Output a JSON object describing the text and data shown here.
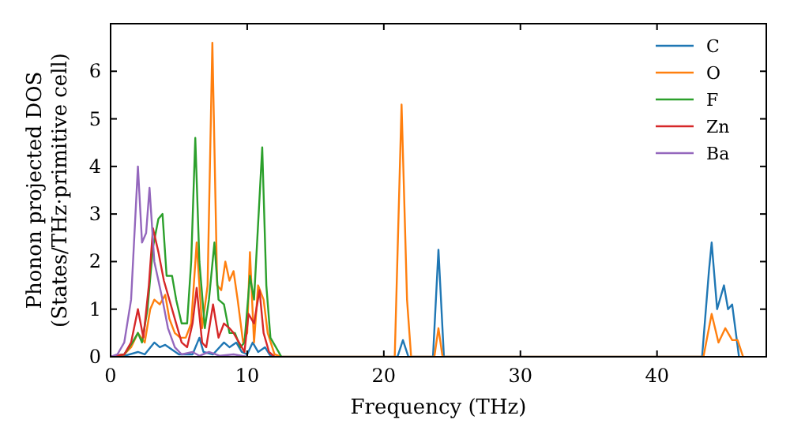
{
  "chart_data": {
    "type": "line",
    "xlabel": "Frequency (THz)",
    "ylabel": "Phonon projected DOS\n(States/THz·primitive cell)",
    "xlim": [
      0,
      48
    ],
    "ylim": [
      0,
      7
    ],
    "xticks": [
      0,
      10,
      20,
      30,
      40
    ],
    "yticks": [
      0,
      1,
      2,
      3,
      4,
      5,
      6
    ],
    "legend": "top right",
    "grid": false,
    "marker": "none",
    "line_style": "solid",
    "series": [
      {
        "name": "C",
        "color": "#1f77b4",
        "x": [
          0,
          1,
          2,
          2.5,
          3.2,
          3.6,
          4,
          4.5,
          5,
          6,
          6.5,
          6.8,
          7.5,
          8.3,
          8.7,
          9.2,
          9.6,
          10,
          10.4,
          10.8,
          11.3,
          11.7,
          12,
          21,
          21.4,
          21.8,
          23.6,
          24,
          24.4,
          43.3,
          43.8,
          44,
          44.4,
          44.9,
          45.2,
          45.5,
          46
        ],
        "values": [
          0,
          0.02,
          0.1,
          0.05,
          0.3,
          0.2,
          0.25,
          0.15,
          0.05,
          0.05,
          0.4,
          0.1,
          0.05,
          0.3,
          0.2,
          0.3,
          0.1,
          0.05,
          0.3,
          0.1,
          0.2,
          0.02,
          0,
          0,
          0.35,
          0,
          0,
          2.25,
          0,
          0,
          1.8,
          2.4,
          1,
          1.5,
          1,
          1.1,
          0
        ]
      },
      {
        "name": "O",
        "color": "#ff7f0e",
        "x": [
          0,
          1,
          1.5,
          2,
          2.5,
          2.9,
          3.2,
          3.6,
          4,
          4.3,
          4.7,
          5.1,
          5.5,
          5.9,
          6.3,
          6.7,
          7.1,
          7.45,
          7.8,
          8.1,
          8.4,
          8.7,
          9,
          9.3,
          9.7,
          10,
          10.2,
          10.5,
          10.8,
          11.2,
          11.5,
          12,
          12.5,
          20.8,
          21.3,
          21.7,
          22,
          23.7,
          24,
          24.3,
          43.4,
          44,
          44.5,
          45,
          45.5,
          45.9,
          46.3
        ],
        "values": [
          0,
          0.05,
          0.2,
          0.5,
          0.3,
          1,
          1.2,
          1.1,
          1.3,
          0.8,
          0.5,
          0.4,
          0.4,
          0.7,
          2.4,
          0.6,
          1.5,
          6.6,
          1.5,
          1.4,
          2,
          1.6,
          1.8,
          1.2,
          0.3,
          0.5,
          2.2,
          0.3,
          1.5,
          1.2,
          0.5,
          0.05,
          0,
          0,
          5.3,
          1.2,
          0,
          0,
          0.6,
          0,
          0,
          0.9,
          0.3,
          0.6,
          0.35,
          0.35,
          0
        ]
      },
      {
        "name": "F",
        "color": "#2ca02c",
        "x": [
          0,
          1,
          1.6,
          2,
          2.3,
          2.7,
          3.1,
          3.5,
          3.8,
          4.1,
          4.5,
          4.8,
          5.2,
          5.6,
          5.9,
          6.2,
          6.5,
          6.9,
          7.2,
          7.6,
          7.9,
          8.3,
          8.7,
          9.1,
          9.5,
          9.8,
          10.2,
          10.5,
          11.1,
          11.4,
          11.7,
          12.1,
          12.5
        ],
        "values": [
          0,
          0.05,
          0.3,
          0.5,
          0.3,
          1,
          2.3,
          2.9,
          3,
          1.7,
          1.7,
          1.2,
          0.7,
          0.7,
          2,
          4.6,
          2,
          0.6,
          1.2,
          2.4,
          1.2,
          1.1,
          0.5,
          0.5,
          0.2,
          0.3,
          1.7,
          1.2,
          4.4,
          1.5,
          0.4,
          0.2,
          0
        ]
      },
      {
        "name": "Zn",
        "color": "#d62728",
        "x": [
          0,
          1,
          1.5,
          2,
          2.4,
          2.8,
          3.1,
          3.5,
          3.9,
          4.3,
          4.8,
          5.2,
          5.6,
          6,
          6.3,
          6.7,
          7,
          7.5,
          7.9,
          8.3,
          8.7,
          9,
          9.4,
          9.8,
          10.1,
          10.5,
          10.9,
          11.2,
          11.6,
          12
        ],
        "values": [
          0,
          0.05,
          0.3,
          1,
          0.4,
          1.5,
          2.7,
          2.2,
          1.6,
          1.2,
          0.7,
          0.3,
          0.2,
          0.7,
          1.45,
          0.3,
          0.2,
          1.1,
          0.4,
          0.7,
          0.6,
          0.5,
          0.3,
          0.1,
          0.9,
          0.7,
          1.4,
          0.5,
          0.1,
          0
        ]
      },
      {
        "name": "Ba",
        "color": "#9467bd",
        "x": [
          0,
          0.5,
          1,
          1.5,
          2,
          2.3,
          2.6,
          2.85,
          3.2,
          3.5,
          3.8,
          4.2,
          4.7,
          5.2,
          6,
          6.5,
          7.2,
          8,
          9,
          10
        ],
        "values": [
          0,
          0.05,
          0.3,
          1.2,
          4,
          2.4,
          2.6,
          3.55,
          2,
          1.6,
          1.2,
          0.6,
          0.2,
          0.05,
          0.1,
          0.02,
          0.1,
          0.02,
          0.05,
          0
        ]
      }
    ]
  }
}
